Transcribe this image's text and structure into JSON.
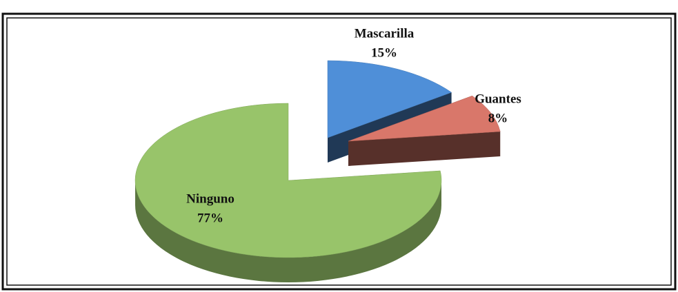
{
  "chart_data": {
    "type": "pie",
    "categories": [
      "Mascarilla",
      "Guantes",
      "Ninguno"
    ],
    "values": [
      15,
      8,
      77
    ],
    "value_labels": [
      "15%",
      "8%",
      "77%"
    ],
    "colors": [
      "#4f8fd8",
      "#d9776a",
      "#98c46a"
    ]
  }
}
